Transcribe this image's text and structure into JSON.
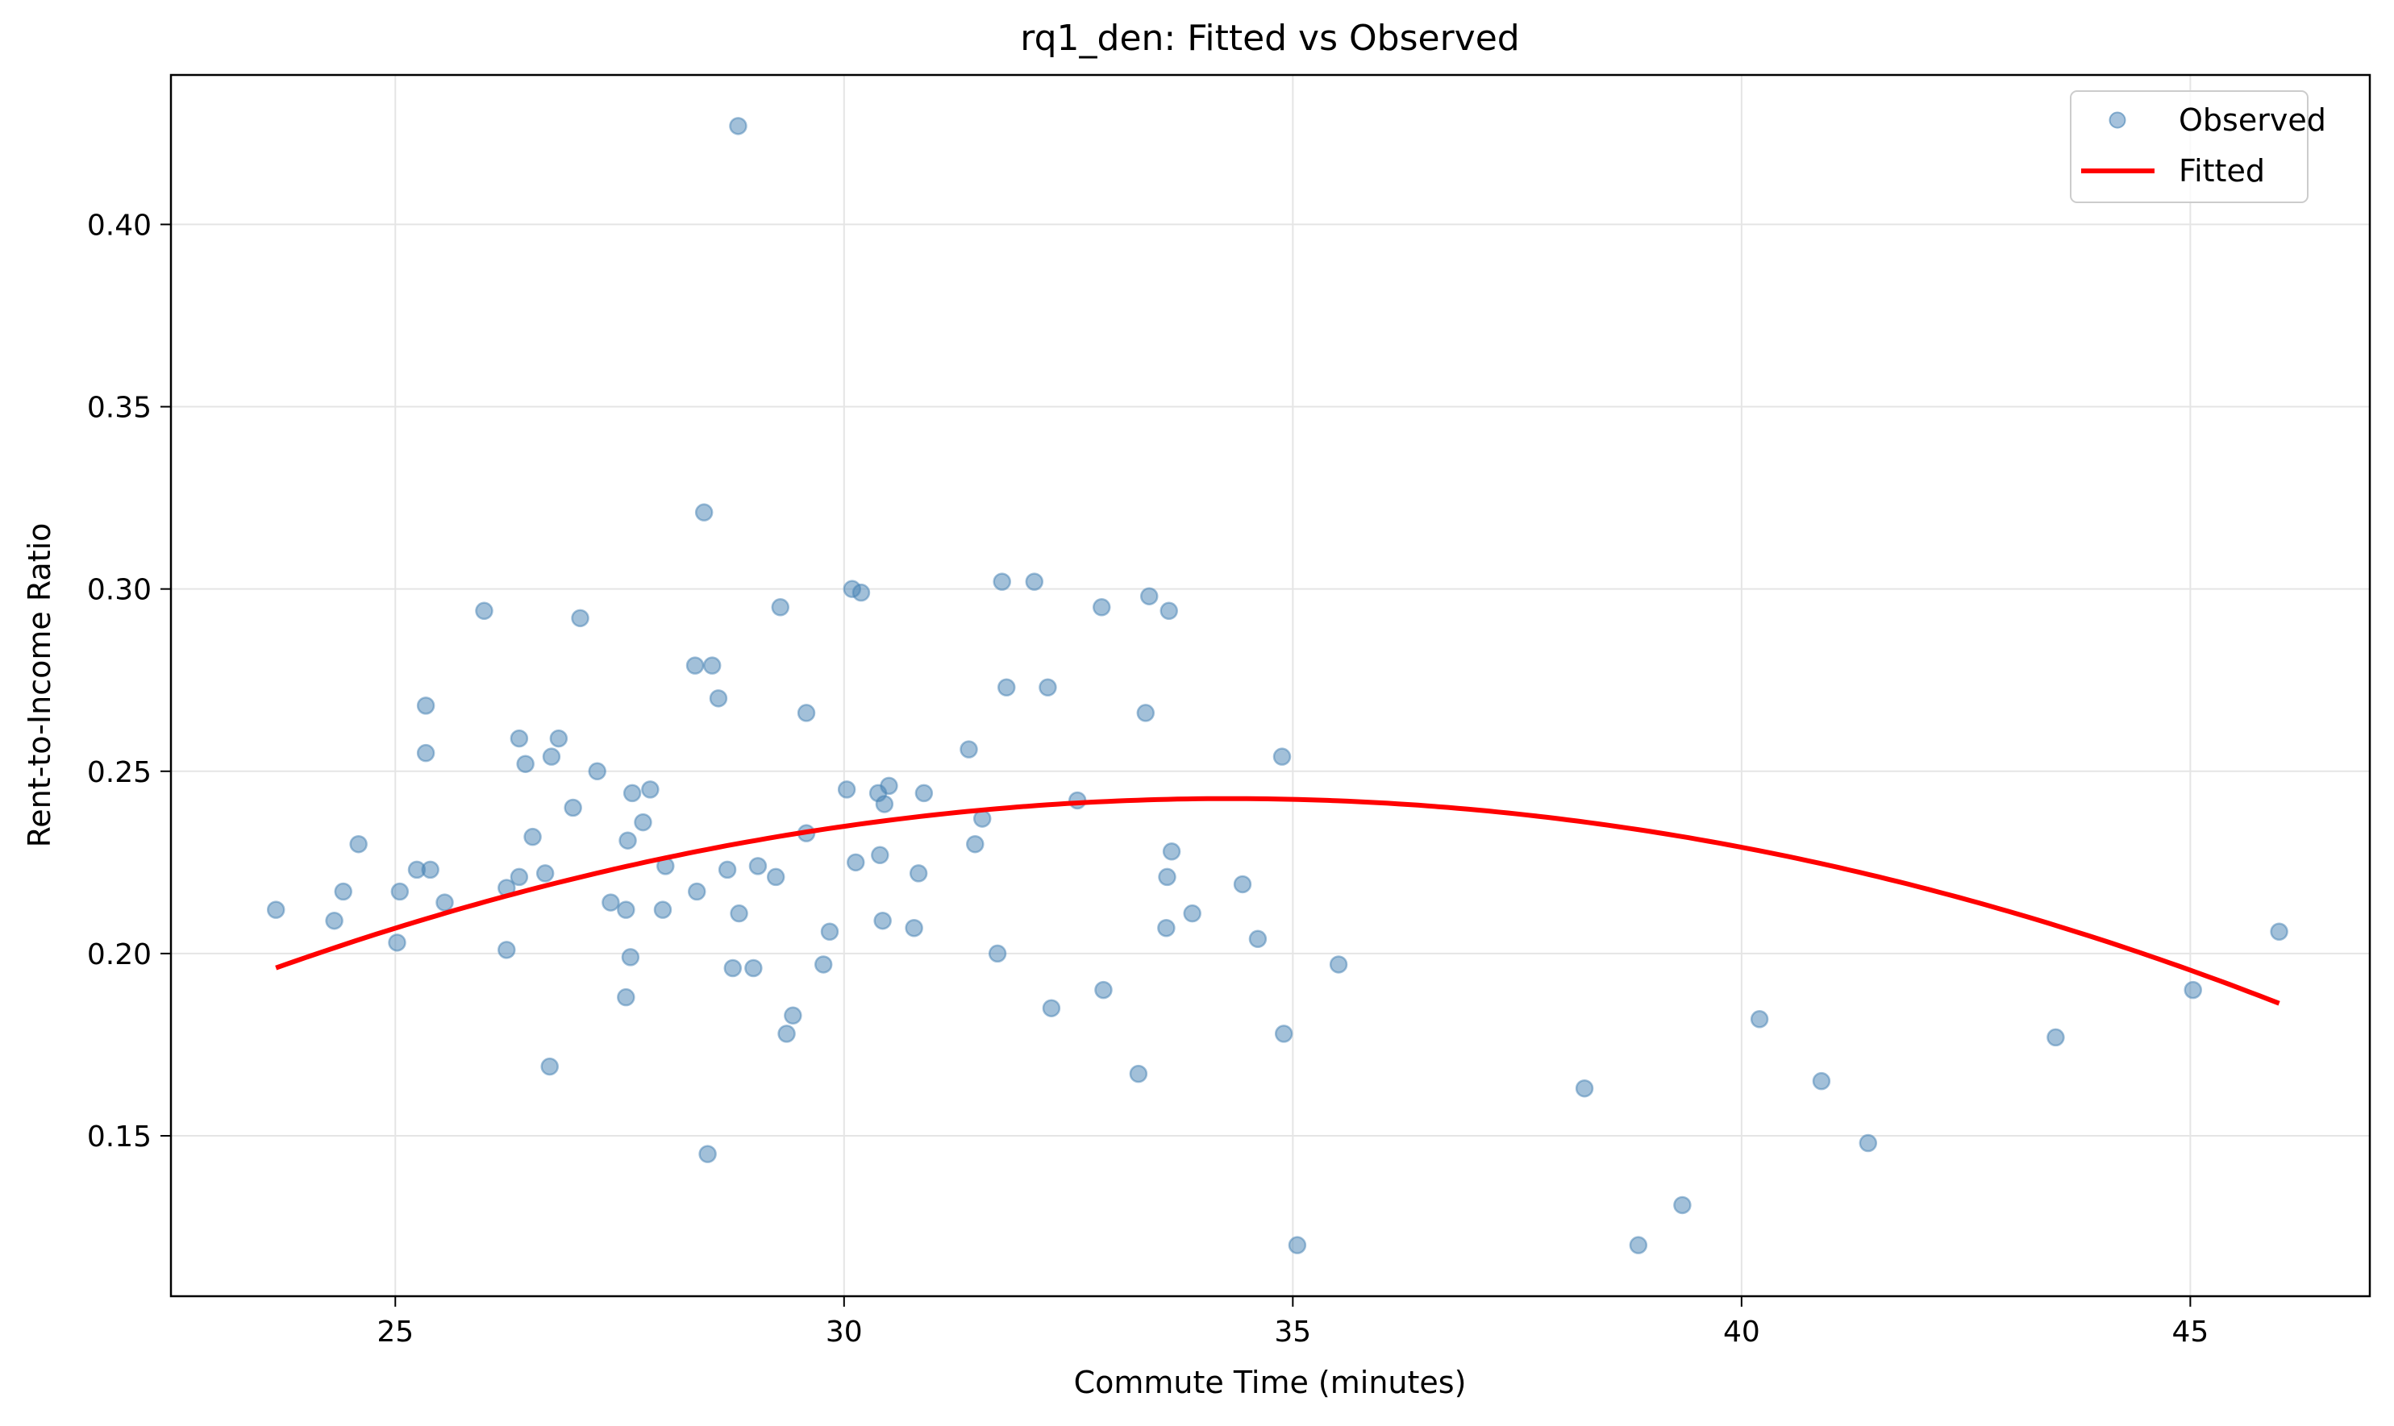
{
  "chart_data": {
    "type": "scatter",
    "title": "rq1_den: Fitted vs Observed",
    "xlabel": "Commute Time (minutes)",
    "ylabel": "Rent-to-Income Ratio",
    "xlim": [
      22.5,
      47.0
    ],
    "ylim": [
      0.106,
      0.441
    ],
    "xticks": [
      25,
      30,
      35,
      40,
      45
    ],
    "xtick_labels": [
      "25",
      "30",
      "35",
      "40",
      "45"
    ],
    "yticks": [
      0.15,
      0.2,
      0.25,
      0.3,
      0.35,
      0.4
    ],
    "ytick_labels": [
      "0.15",
      "0.20",
      "0.25",
      "0.30",
      "0.35",
      "0.40"
    ],
    "grid": true,
    "legend_position": "upper right",
    "legend": [
      {
        "label": "Observed",
        "type": "marker",
        "color": "#6b9ac4"
      },
      {
        "label": "Fitted",
        "type": "line",
        "color": "#ff0000"
      }
    ],
    "series": [
      {
        "name": "Observed",
        "type": "scatter",
        "color": "#4682b4",
        "alpha": 0.5,
        "points": [
          [
            23.67,
            0.212
          ],
          [
            24.32,
            0.209
          ],
          [
            24.42,
            0.217
          ],
          [
            24.59,
            0.23
          ],
          [
            25.02,
            0.203
          ],
          [
            25.05,
            0.217
          ],
          [
            25.24,
            0.223
          ],
          [
            25.39,
            0.223
          ],
          [
            25.34,
            0.268
          ],
          [
            25.34,
            0.255
          ],
          [
            25.55,
            0.214
          ],
          [
            25.99,
            0.294
          ],
          [
            26.24,
            0.218
          ],
          [
            26.24,
            0.201
          ],
          [
            26.38,
            0.221
          ],
          [
            26.38,
            0.259
          ],
          [
            26.45,
            0.252
          ],
          [
            26.53,
            0.232
          ],
          [
            26.67,
            0.222
          ],
          [
            26.72,
            0.169
          ],
          [
            26.74,
            0.254
          ],
          [
            26.82,
            0.259
          ],
          [
            26.98,
            0.24
          ],
          [
            27.06,
            0.292
          ],
          [
            27.25,
            0.25
          ],
          [
            27.4,
            0.214
          ],
          [
            27.57,
            0.212
          ],
          [
            27.59,
            0.231
          ],
          [
            27.57,
            0.188
          ],
          [
            27.62,
            0.199
          ],
          [
            27.64,
            0.244
          ],
          [
            27.76,
            0.236
          ],
          [
            27.84,
            0.245
          ],
          [
            27.98,
            0.212
          ],
          [
            28.01,
            0.224
          ],
          [
            28.34,
            0.279
          ],
          [
            28.36,
            0.217
          ],
          [
            28.44,
            0.321
          ],
          [
            28.48,
            0.145
          ],
          [
            28.53,
            0.279
          ],
          [
            28.6,
            0.27
          ],
          [
            28.7,
            0.223
          ],
          [
            28.76,
            0.196
          ],
          [
            28.82,
            0.427
          ],
          [
            28.83,
            0.211
          ],
          [
            28.99,
            0.196
          ],
          [
            29.04,
            0.224
          ],
          [
            29.24,
            0.221
          ],
          [
            29.29,
            0.295
          ],
          [
            29.36,
            0.178
          ],
          [
            29.43,
            0.183
          ],
          [
            29.58,
            0.266
          ],
          [
            29.58,
            0.233
          ],
          [
            29.77,
            0.197
          ],
          [
            29.84,
            0.206
          ],
          [
            30.03,
            0.245
          ],
          [
            30.09,
            0.3
          ],
          [
            30.13,
            0.225
          ],
          [
            30.19,
            0.299
          ],
          [
            30.38,
            0.244
          ],
          [
            30.4,
            0.227
          ],
          [
            30.43,
            0.209
          ],
          [
            30.45,
            0.241
          ],
          [
            30.5,
            0.246
          ],
          [
            30.78,
            0.207
          ],
          [
            30.83,
            0.222
          ],
          [
            30.89,
            0.244
          ],
          [
            31.39,
            0.256
          ],
          [
            31.46,
            0.23
          ],
          [
            31.54,
            0.237
          ],
          [
            31.71,
            0.2
          ],
          [
            31.76,
            0.302
          ],
          [
            31.81,
            0.273
          ],
          [
            32.12,
            0.302
          ],
          [
            32.27,
            0.273
          ],
          [
            32.31,
            0.185
          ],
          [
            32.6,
            0.242
          ],
          [
            32.87,
            0.295
          ],
          [
            32.89,
            0.19
          ],
          [
            33.28,
            0.167
          ],
          [
            33.36,
            0.266
          ],
          [
            33.4,
            0.298
          ],
          [
            33.59,
            0.207
          ],
          [
            33.6,
            0.221
          ],
          [
            33.62,
            0.294
          ],
          [
            33.65,
            0.228
          ],
          [
            33.88,
            0.211
          ],
          [
            34.44,
            0.219
          ],
          [
            34.61,
            0.204
          ],
          [
            34.88,
            0.254
          ],
          [
            34.9,
            0.178
          ],
          [
            35.05,
            0.12
          ],
          [
            35.51,
            0.197
          ],
          [
            38.25,
            0.163
          ],
          [
            38.85,
            0.12
          ],
          [
            39.34,
            0.131
          ],
          [
            40.2,
            0.182
          ],
          [
            40.89,
            0.165
          ],
          [
            41.41,
            0.148
          ],
          [
            43.5,
            0.177
          ],
          [
            45.03,
            0.19
          ],
          [
            45.99,
            0.206
          ]
        ]
      },
      {
        "name": "Fitted",
        "type": "line",
        "color": "#ff0000",
        "x_range": [
          23.67,
          45.99
        ],
        "model": "quadratic",
        "vertex_x": 34.3,
        "vertex_y": 0.2425,
        "curvature": -0.000411,
        "points": [
          [
            23.67,
            0.196
          ],
          [
            25.0,
            0.207
          ],
          [
            27.5,
            0.224
          ],
          [
            30.0,
            0.235
          ],
          [
            32.5,
            0.241
          ],
          [
            34.3,
            0.2425
          ],
          [
            35.0,
            0.242
          ],
          [
            37.5,
            0.238
          ],
          [
            40.0,
            0.229
          ],
          [
            42.5,
            0.215
          ],
          [
            45.0,
            0.196
          ],
          [
            45.99,
            0.188
          ]
        ]
      }
    ]
  }
}
